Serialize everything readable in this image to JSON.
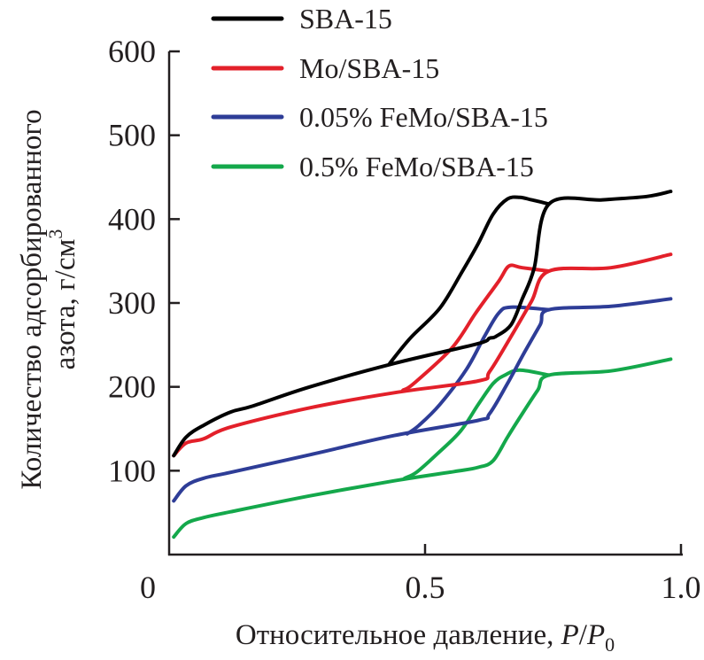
{
  "chart_data": {
    "type": "line",
    "title": "",
    "xlabel": "Относительное давление, P/P0",
    "xlabel_parts": {
      "text": "Относительное давление, ",
      "var1": "P",
      "slash": "/",
      "var2": "P",
      "sub": "0"
    },
    "ylabel": "Количество адсорбированного азота, г/см3",
    "ylabel_lines": {
      "line1": "Количество адсорбированного",
      "line2": "азота, г/см",
      "sup": "3"
    },
    "xlim": [
      0,
      1.0
    ],
    "ylim": [
      0,
      600
    ],
    "x_ticks": [
      0.5,
      1.0
    ],
    "x_tick_labels": [
      "0.5",
      "1.0"
    ],
    "y_ticks": [
      100,
      200,
      300,
      400,
      500,
      600
    ],
    "y_tick_labels": [
      "100",
      "200",
      "300",
      "400",
      "500",
      "600"
    ],
    "origin_label": "0",
    "grid": false,
    "legend_position": "top",
    "series": [
      {
        "name": "SBA-15",
        "color": "#000000",
        "adsorption": [
          [
            0.009,
            118
          ],
          [
            0.033,
            140
          ],
          [
            0.067,
            154
          ],
          [
            0.12,
            170
          ],
          [
            0.163,
            177
          ],
          [
            0.275,
            200
          ],
          [
            0.44,
            228
          ],
          [
            0.6,
            251
          ],
          [
            0.626,
            258
          ],
          [
            0.638,
            260
          ],
          [
            0.668,
            274
          ],
          [
            0.69,
            305
          ],
          [
            0.713,
            341
          ],
          [
            0.742,
            418
          ],
          [
            0.846,
            423
          ],
          [
            0.933,
            427
          ],
          [
            0.98,
            433
          ]
        ],
        "desorption": [
          [
            0.742,
            418
          ],
          [
            0.708,
            423
          ],
          [
            0.685,
            426
          ],
          [
            0.661,
            424
          ],
          [
            0.633,
            406
          ],
          [
            0.604,
            371
          ],
          [
            0.574,
            339
          ],
          [
            0.529,
            294
          ],
          [
            0.471,
            258
          ],
          [
            0.431,
            228
          ]
        ]
      },
      {
        "name": "Mo/SBA-15",
        "color": "#e3202a",
        "adsorption": [
          [
            0.009,
            118
          ],
          [
            0.033,
            133
          ],
          [
            0.067,
            138
          ],
          [
            0.12,
            152
          ],
          [
            0.275,
            175
          ],
          [
            0.44,
            193
          ],
          [
            0.604,
            207
          ],
          [
            0.626,
            218
          ],
          [
            0.668,
            260
          ],
          [
            0.708,
            302
          ],
          [
            0.742,
            338
          ],
          [
            0.863,
            342
          ],
          [
            0.98,
            358
          ]
        ],
        "desorption": [
          [
            0.742,
            338
          ],
          [
            0.69,
            342
          ],
          [
            0.664,
            344
          ],
          [
            0.644,
            326
          ],
          [
            0.599,
            288
          ],
          [
            0.552,
            246
          ],
          [
            0.478,
            204
          ],
          [
            0.457,
            196
          ]
        ]
      },
      {
        "name": "0.05% FeMo/SBA-15",
        "color": "#2e3d97",
        "adsorption": [
          [
            0.009,
            64
          ],
          [
            0.033,
            82
          ],
          [
            0.067,
            91
          ],
          [
            0.12,
            98
          ],
          [
            0.275,
            119
          ],
          [
            0.44,
            142
          ],
          [
            0.604,
            160
          ],
          [
            0.626,
            168
          ],
          [
            0.661,
            204
          ],
          [
            0.695,
            242
          ],
          [
            0.725,
            274
          ],
          [
            0.742,
            292
          ],
          [
            0.863,
            296
          ],
          [
            0.98,
            305
          ]
        ],
        "desorption": [
          [
            0.742,
            292
          ],
          [
            0.668,
            295
          ],
          [
            0.644,
            288
          ],
          [
            0.616,
            260
          ],
          [
            0.581,
            221
          ],
          [
            0.529,
            179
          ],
          [
            0.488,
            154
          ],
          [
            0.465,
            144
          ]
        ]
      },
      {
        "name": "0.5% FeMo/SBA-15",
        "color": "#14a84b",
        "adsorption": [
          [
            0.009,
            21
          ],
          [
            0.033,
            37
          ],
          [
            0.067,
            44
          ],
          [
            0.12,
            51
          ],
          [
            0.275,
            70
          ],
          [
            0.44,
            88
          ],
          [
            0.557,
            99
          ],
          [
            0.604,
            104
          ],
          [
            0.633,
            112
          ],
          [
            0.661,
            140
          ],
          [
            0.69,
            168
          ],
          [
            0.72,
            196
          ],
          [
            0.742,
            214
          ],
          [
            0.863,
            219
          ],
          [
            0.98,
            233
          ]
        ],
        "desorption": [
          [
            0.742,
            214
          ],
          [
            0.685,
            220
          ],
          [
            0.656,
            214
          ],
          [
            0.633,
            204
          ],
          [
            0.604,
            179
          ],
          [
            0.569,
            147
          ],
          [
            0.522,
            119
          ],
          [
            0.483,
            98
          ],
          [
            0.46,
            91
          ]
        ]
      }
    ]
  }
}
